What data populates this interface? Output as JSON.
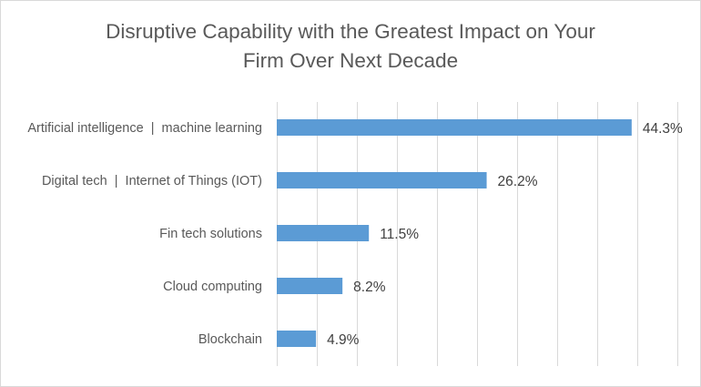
{
  "chart_data": {
    "type": "bar",
    "orientation": "horizontal",
    "title_lines": [
      "Disruptive Capability with the Greatest Impact on Your",
      "Firm Over Next Decade"
    ],
    "categories": [
      "Artificial intelligence  |  machine learning",
      "Digital tech  |  Internet of Things (IOT)",
      "Fin tech solutions",
      "Cloud computing",
      "Blockchain"
    ],
    "values": [
      44.3,
      26.2,
      11.5,
      8.2,
      4.9
    ],
    "value_labels": [
      "44.3%",
      "26.2%",
      "11.5%",
      "8.2%",
      "4.9%"
    ],
    "xlim": [
      0,
      50
    ],
    "grid": true,
    "bar_color": "#5b9bd5"
  }
}
